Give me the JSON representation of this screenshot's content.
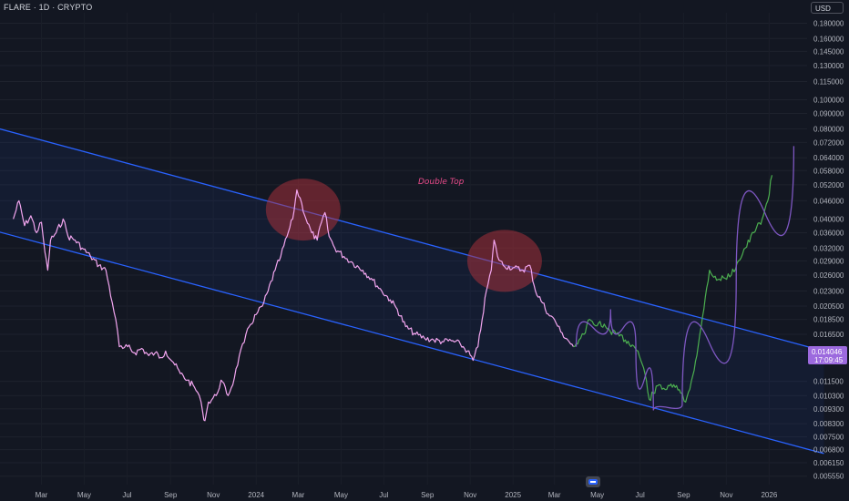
{
  "header": {
    "symbol": "FLARE · 1D · CRYPTO",
    "currency": "USD"
  },
  "annotation": {
    "text": "Double Top"
  },
  "last_price": {
    "value": "0.014046",
    "countdown": "17:09:45"
  },
  "colors": {
    "background": "#131722",
    "history_line": "#f3a6f0",
    "projection_line": "#4caf50",
    "channel_line": "#2962ff",
    "channel_fill": "#2962ff",
    "circle_fill": "#b2323c",
    "arc": "#7e57c2",
    "last_price_bg": "#9c6ade"
  },
  "chart_data": {
    "type": "line",
    "title": "",
    "y_scale": "log",
    "y_ticks": [
      "0.180000",
      "0.160000",
      "0.145000",
      "0.130000",
      "0.115000",
      "0.100000",
      "0.090000",
      "0.080000",
      "0.072000",
      "0.064000",
      "0.058000",
      "0.052000",
      "0.046000",
      "0.040000",
      "0.036000",
      "0.032000",
      "0.029000",
      "0.026000",
      "0.023000",
      "0.020500",
      "0.018500",
      "0.016500",
      "0.014500",
      "0.011500",
      "0.010300",
      "0.009300",
      "0.008300",
      "0.007500",
      "0.006800",
      "0.006150",
      "0.005550"
    ],
    "x_ticks": [
      "Mar",
      "May",
      "Jul",
      "Sep",
      "Nov",
      "2024",
      "Mar",
      "May",
      "Jul",
      "Sep",
      "Nov",
      "2025",
      "Mar",
      "May",
      "Jul",
      "Sep",
      "Nov",
      "2026"
    ],
    "series": [
      {
        "style": "history",
        "points": [
          [
            "2023-01-20",
            0.04
          ],
          [
            "2023-01-28",
            0.046
          ],
          [
            "2023-02-05",
            0.038
          ],
          [
            "2023-02-14",
            0.041
          ],
          [
            "2023-02-22",
            0.036
          ],
          [
            "2023-03-01",
            0.039
          ],
          [
            "2023-03-06",
            0.031
          ],
          [
            "2023-03-10",
            0.027
          ],
          [
            "2023-03-14",
            0.034
          ],
          [
            "2023-03-22",
            0.036
          ],
          [
            "2023-04-01",
            0.04
          ],
          [
            "2023-04-08",
            0.035
          ],
          [
            "2023-04-18",
            0.034
          ],
          [
            "2023-04-28",
            0.032
          ],
          [
            "2023-05-10",
            0.03
          ],
          [
            "2023-05-22",
            0.028
          ],
          [
            "2023-06-01",
            0.027
          ],
          [
            "2023-06-10",
            0.021
          ],
          [
            "2023-06-15",
            0.0185
          ],
          [
            "2023-06-20",
            0.015
          ],
          [
            "2023-06-25",
            0.0148
          ],
          [
            "2023-07-02",
            0.015
          ],
          [
            "2023-07-12",
            0.0143
          ],
          [
            "2023-07-22",
            0.0148
          ],
          [
            "2023-08-01",
            0.014
          ],
          [
            "2023-08-10",
            0.0143
          ],
          [
            "2023-08-18",
            0.0138
          ],
          [
            "2023-08-25",
            0.0145
          ],
          [
            "2023-09-05",
            0.0133
          ],
          [
            "2023-09-15",
            0.0122
          ],
          [
            "2023-09-25",
            0.0116
          ],
          [
            "2023-10-05",
            0.011
          ],
          [
            "2023-10-12",
            0.0103
          ],
          [
            "2023-10-17",
            0.009
          ],
          [
            "2023-10-20",
            0.0085
          ],
          [
            "2023-10-25",
            0.0098
          ],
          [
            "2023-11-05",
            0.0103
          ],
          [
            "2023-11-12",
            0.0116
          ],
          [
            "2023-11-22",
            0.0103
          ],
          [
            "2023-12-01",
            0.0118
          ],
          [
            "2023-12-08",
            0.014
          ],
          [
            "2023-12-15",
            0.0155
          ],
          [
            "2023-12-22",
            0.0175
          ],
          [
            "2024-01-01",
            0.0192
          ],
          [
            "2024-01-10",
            0.0205
          ],
          [
            "2024-01-18",
            0.023
          ],
          [
            "2024-01-28",
            0.027
          ],
          [
            "2024-02-05",
            0.03
          ],
          [
            "2024-02-14",
            0.035
          ],
          [
            "2024-02-22",
            0.04
          ],
          [
            "2024-02-28",
            0.05
          ],
          [
            "2024-03-06",
            0.045
          ],
          [
            "2024-03-12",
            0.04
          ],
          [
            "2024-03-20",
            0.036
          ],
          [
            "2024-03-28",
            0.034
          ],
          [
            "2024-04-03",
            0.039
          ],
          [
            "2024-04-08",
            0.042
          ],
          [
            "2024-04-14",
            0.035
          ],
          [
            "2024-04-22",
            0.032
          ],
          [
            "2024-05-05",
            0.03
          ],
          [
            "2024-05-18",
            0.0285
          ],
          [
            "2024-06-01",
            0.027
          ],
          [
            "2024-06-15",
            0.025
          ],
          [
            "2024-06-28",
            0.023
          ],
          [
            "2024-07-10",
            0.0215
          ],
          [
            "2024-07-20",
            0.02
          ],
          [
            "2024-08-01",
            0.0175
          ],
          [
            "2024-08-15",
            0.0165
          ],
          [
            "2024-08-28",
            0.016
          ],
          [
            "2024-09-10",
            0.0158
          ],
          [
            "2024-09-22",
            0.0156
          ],
          [
            "2024-10-05",
            0.0157
          ],
          [
            "2024-10-18",
            0.0153
          ],
          [
            "2024-10-28",
            0.0145
          ],
          [
            "2024-11-05",
            0.0135
          ],
          [
            "2024-11-12",
            0.015
          ],
          [
            "2024-11-18",
            0.0185
          ],
          [
            "2024-11-24",
            0.023
          ],
          [
            "2024-12-01",
            0.027
          ],
          [
            "2024-12-05",
            0.034
          ],
          [
            "2024-12-10",
            0.03
          ],
          [
            "2024-12-18",
            0.028
          ],
          [
            "2025-01-01",
            0.0275
          ],
          [
            "2025-01-15",
            0.027
          ],
          [
            "2025-01-25",
            0.028
          ],
          [
            "2025-02-02",
            0.023
          ],
          [
            "2025-02-12",
            0.021
          ],
          [
            "2025-02-22",
            0.019
          ],
          [
            "2025-03-01",
            0.0185
          ],
          [
            "2025-03-10",
            0.0168
          ],
          [
            "2025-03-20",
            0.0158
          ],
          [
            "2025-03-28",
            0.015
          ]
        ]
      },
      {
        "style": "projection",
        "points": [
          [
            "2025-03-28",
            0.015
          ],
          [
            "2025-04-05",
            0.0158
          ],
          [
            "2025-04-12",
            0.0165
          ],
          [
            "2025-04-20",
            0.0185
          ],
          [
            "2025-04-26",
            0.0178
          ],
          [
            "2025-05-03",
            0.018
          ],
          [
            "2025-05-15",
            0.0172
          ],
          [
            "2025-05-28",
            0.0165
          ],
          [
            "2025-06-10",
            0.0158
          ],
          [
            "2025-06-20",
            0.0152
          ],
          [
            "2025-06-28",
            0.0145
          ],
          [
            "2025-07-08",
            0.0122
          ],
          [
            "2025-07-14",
            0.01
          ],
          [
            "2025-07-20",
            0.0105
          ],
          [
            "2025-07-28",
            0.0112
          ],
          [
            "2025-08-08",
            0.0108
          ],
          [
            "2025-08-18",
            0.0112
          ],
          [
            "2025-08-28",
            0.0105
          ],
          [
            "2025-09-04",
            0.0098
          ],
          [
            "2025-09-12",
            0.0115
          ],
          [
            "2025-09-20",
            0.014
          ],
          [
            "2025-09-26",
            0.0175
          ],
          [
            "2025-10-02",
            0.022
          ],
          [
            "2025-10-08",
            0.027
          ],
          [
            "2025-10-18",
            0.025
          ],
          [
            "2025-10-28",
            0.0255
          ],
          [
            "2025-11-08",
            0.026
          ],
          [
            "2025-11-18",
            0.029
          ],
          [
            "2025-11-28",
            0.032
          ],
          [
            "2025-12-10",
            0.036
          ],
          [
            "2025-12-22",
            0.04
          ],
          [
            "2025-12-30",
            0.046
          ],
          [
            "2026-01-05",
            0.056
          ]
        ]
      }
    ],
    "channel": {
      "upper": [
        [
          "2022-12-31",
          0.08
        ],
        [
          "2026-03-20",
          0.0145
        ]
      ],
      "lower": [
        [
          "2022-12-31",
          0.0362
        ],
        [
          "2026-03-20",
          0.0066
        ]
      ]
    },
    "highlight_circles": [
      {
        "date": "2024-03-08",
        "value": 0.043
      },
      {
        "date": "2024-12-20",
        "value": 0.029
      }
    ],
    "arc_path": [
      [
        "2025-04-01",
        0.015
      ],
      [
        "2025-05-20",
        0.02
      ],
      [
        "2025-06-25",
        0.015
      ],
      [
        "2025-07-20",
        0.0092
      ],
      [
        "2025-08-30",
        0.0096
      ],
      [
        "2025-11-15",
        0.025
      ],
      [
        "2026-02-05",
        0.07
      ]
    ],
    "last_price": 0.014046
  }
}
